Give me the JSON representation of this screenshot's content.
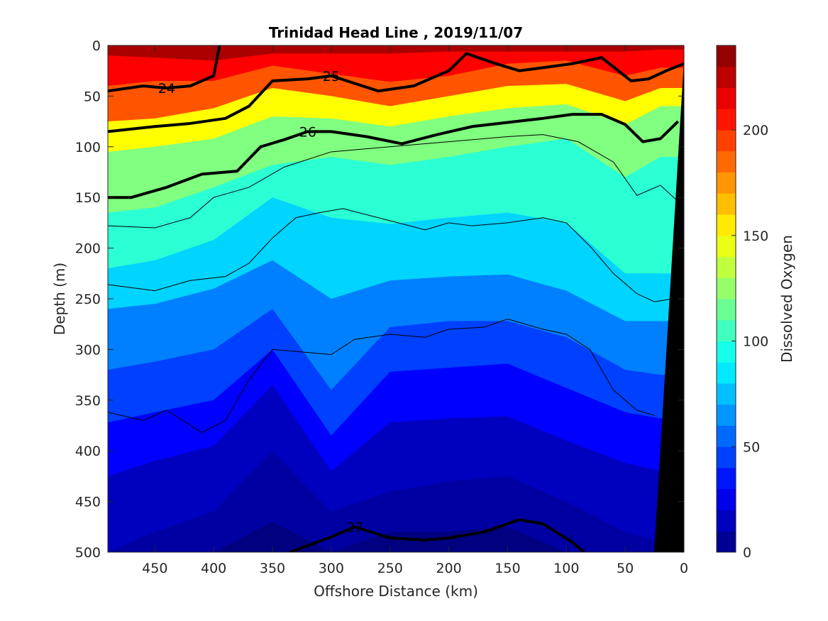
{
  "chart_data": {
    "type": "heatmap",
    "title": "Trinidad Head Line , 2019/11/07",
    "xlabel": "Offshore Distance (km)",
    "ylabel": "Depth (m)",
    "xlim": [
      490,
      0
    ],
    "ylim": [
      0,
      500
    ],
    "x_reversed": true,
    "y_reversed": true,
    "x_ticks": [
      450,
      400,
      350,
      300,
      250,
      200,
      150,
      100,
      50,
      0
    ],
    "y_ticks": [
      0,
      50,
      100,
      150,
      200,
      250,
      300,
      350,
      400,
      450,
      500
    ],
    "colorbar": {
      "label": "Dissolved Oxygen",
      "range": [
        0,
        240
      ],
      "ticks": [
        0,
        50,
        100,
        150,
        200
      ],
      "levels": 24,
      "colormap": "jet"
    },
    "oxygen_layers": [
      {
        "value": 230,
        "x": [
          490,
          450,
          400,
          350,
          300,
          250,
          200,
          150,
          100,
          50,
          20
        ],
        "depth": [
          10,
          12,
          15,
          8,
          8,
          8,
          6,
          6,
          6,
          6,
          4
        ]
      },
      {
        "value": 210,
        "x": [
          490,
          450,
          400,
          350,
          300,
          250,
          200,
          150,
          100,
          50,
          20
        ],
        "depth": [
          40,
          35,
          35,
          20,
          28,
          36,
          30,
          18,
          15,
          30,
          22
        ]
      },
      {
        "value": 190,
        "x": [
          490,
          450,
          400,
          350,
          300,
          250,
          200,
          150,
          100,
          50,
          20
        ],
        "depth": [
          75,
          72,
          62,
          42,
          50,
          60,
          50,
          40,
          38,
          55,
          42
        ]
      },
      {
        "value": 150,
        "x": [
          490,
          450,
          400,
          350,
          300,
          250,
          200,
          150,
          100,
          50,
          20
        ],
        "depth": [
          105,
          100,
          92,
          70,
          72,
          80,
          70,
          62,
          58,
          78,
          60
        ]
      },
      {
        "value": 120,
        "x": [
          490,
          450,
          400,
          350,
          300,
          250,
          200,
          150,
          100,
          50,
          20
        ],
        "depth": [
          165,
          160,
          140,
          118,
          110,
          118,
          110,
          100,
          92,
          130,
          110
        ]
      },
      {
        "value": 100,
        "x": [
          490,
          450,
          400,
          350,
          300,
          250,
          200,
          150,
          100,
          50,
          20
        ],
        "depth": [
          220,
          212,
          192,
          150,
          170,
          176,
          170,
          165,
          175,
          225,
          225
        ]
      },
      {
        "value": 80,
        "x": [
          490,
          450,
          400,
          350,
          300,
          250,
          200,
          150,
          100,
          50,
          20
        ],
        "depth": [
          260,
          255,
          240,
          212,
          250,
          232,
          228,
          226,
          242,
          272,
          272
        ]
      },
      {
        "value": 60,
        "x": [
          490,
          450,
          400,
          350,
          300,
          250,
          200,
          150,
          100,
          50,
          20
        ],
        "depth": [
          320,
          312,
          300,
          260,
          340,
          278,
          272,
          272,
          288,
          320,
          325
        ]
      },
      {
        "value": 45,
        "x": [
          490,
          450,
          400,
          350,
          300,
          250,
          200,
          150,
          100,
          50,
          20
        ],
        "depth": [
          372,
          362,
          350,
          300,
          385,
          322,
          318,
          314,
          338,
          362,
          368
        ]
      },
      {
        "value": 30,
        "x": [
          490,
          450,
          400,
          350,
          300,
          250,
          200,
          150,
          100,
          50,
          20
        ],
        "depth": [
          425,
          410,
          395,
          335,
          420,
          372,
          368,
          366,
          390,
          412,
          420
        ]
      },
      {
        "value": 15,
        "x": [
          490,
          450,
          400,
          350,
          300,
          250,
          200,
          150,
          100,
          50,
          20
        ],
        "depth": [
          500,
          480,
          460,
          400,
          460,
          440,
          430,
          425,
          450,
          480,
          490
        ]
      },
      {
        "value": 8,
        "x": [
          490,
          450,
          400,
          350,
          300,
          250,
          200,
          150,
          100,
          50,
          20
        ],
        "depth": [
          500,
          500,
          500,
          470,
          500,
          480,
          480,
          475,
          500,
          500,
          500
        ]
      }
    ],
    "density_contours": [
      {
        "label": "24",
        "x": [
          490,
          460,
          440,
          420,
          400,
          395
        ],
        "depth": [
          45,
          40,
          42,
          40,
          30,
          0
        ],
        "bold": true
      },
      {
        "label": "25",
        "x": [
          490,
          450,
          420,
          390,
          370,
          350,
          320,
          300,
          260,
          230,
          200,
          185,
          160,
          140,
          120,
          95,
          70,
          45,
          30,
          15,
          0
        ],
        "depth": [
          85,
          80,
          77,
          72,
          60,
          35,
          33,
          30,
          45,
          40,
          25,
          8,
          18,
          25,
          22,
          18,
          12,
          35,
          33,
          25,
          18
        ],
        "bold": true
      },
      {
        "label": "26",
        "x": [
          490,
          470,
          440,
          410,
          380,
          360,
          340,
          320,
          300,
          270,
          240,
          210,
          180,
          150,
          120,
          95,
          70,
          50,
          35,
          20,
          5
        ],
        "depth": [
          150,
          150,
          140,
          127,
          124,
          100,
          93,
          85,
          85,
          90,
          97,
          88,
          80,
          76,
          72,
          68,
          68,
          78,
          95,
          92,
          75
        ],
        "bold": true
      },
      {
        "label": "27",
        "x": [
          335,
          300,
          280,
          250,
          220,
          200,
          170,
          140,
          120,
          95,
          85
        ],
        "depth": [
          500,
          485,
          475,
          486,
          488,
          486,
          480,
          468,
          472,
          490,
          500
        ],
        "bold": true
      }
    ],
    "thin_contours": [
      {
        "x": [
          490,
          450,
          420,
          400,
          370,
          340,
          300,
          250,
          200,
          150,
          120,
          90,
          60,
          40,
          20,
          5
        ],
        "depth": [
          178,
          180,
          170,
          150,
          140,
          120,
          105,
          100,
          95,
          90,
          88,
          95,
          115,
          148,
          138,
          154
        ]
      },
      {
        "x": [
          490,
          450,
          420,
          390,
          370,
          350,
          330,
          310,
          290,
          250,
          220,
          200,
          180,
          150,
          120,
          100,
          80,
          60,
          40,
          25,
          10
        ],
        "depth": [
          236,
          242,
          232,
          228,
          215,
          190,
          170,
          165,
          161,
          173,
          182,
          175,
          178,
          175,
          170,
          175,
          198,
          225,
          245,
          253,
          250
        ]
      },
      {
        "x": [
          490,
          460,
          440,
          410,
          390,
          370,
          350,
          320,
          300,
          280,
          250,
          220,
          200,
          170,
          150,
          120,
          100,
          80,
          60,
          40,
          25
        ],
        "depth": [
          362,
          370,
          360,
          382,
          370,
          330,
          300,
          303,
          305,
          290,
          285,
          288,
          280,
          278,
          270,
          280,
          285,
          300,
          340,
          360,
          365
        ]
      }
    ],
    "bathymetry": {
      "x": [
        25,
        0,
        0
      ],
      "depth": [
        500,
        20,
        500
      ]
    }
  }
}
